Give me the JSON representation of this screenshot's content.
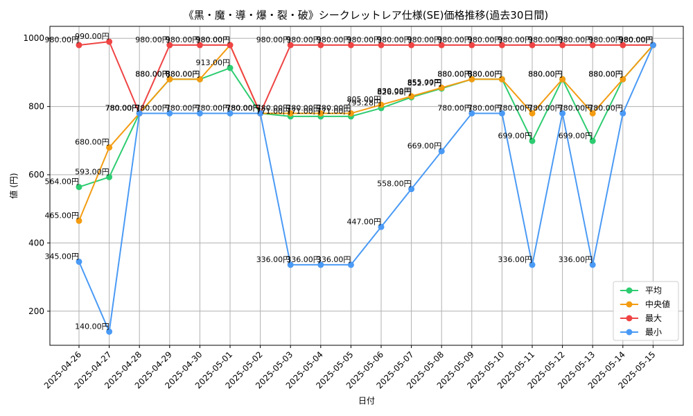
{
  "chart_data": {
    "type": "line",
    "title": "《黒・魔・導・爆・裂・破》シークレットレア仕様(SE)価格推移(過去30日間)",
    "xlabel": "日付",
    "ylabel": "値 (円)",
    "ylim": [
      100,
      1035
    ],
    "yticks": [
      200,
      400,
      600,
      800,
      1000
    ],
    "grid": true,
    "legend_position": "lower-right",
    "value_suffix": "円",
    "categories": [
      "2025-04-26",
      "2025-04-27",
      "2025-04-28",
      "2025-04-29",
      "2025-04-30",
      "2025-05-01",
      "2025-05-02",
      "2025-05-03",
      "2025-05-04",
      "2025-05-05",
      "2025-05-06",
      "2025-05-07",
      "2025-05-08",
      "2025-05-09",
      "2025-05-10",
      "2025-05-11",
      "2025-05-12",
      "2025-05-13",
      "2025-05-14",
      "2025-05-15"
    ],
    "series": [
      {
        "key": "avg",
        "name": "平均",
        "color": "#2ecc71",
        "values": [
          564,
          593,
          780,
          880,
          880,
          913,
          780,
          771,
          771,
          771,
          795.28,
          826.98,
          852.77,
          880,
          880,
          699,
          880,
          699,
          880,
          980
        ]
      },
      {
        "key": "median",
        "name": "中央値",
        "color": "#f39c12",
        "values": [
          465,
          680,
          780,
          880,
          880,
          980,
          780,
          780,
          780,
          780,
          805,
          830,
          855,
          880,
          880,
          780,
          880,
          780,
          880,
          980
        ]
      },
      {
        "key": "max",
        "name": "最大",
        "color": "#ef4444",
        "values": [
          980,
          990,
          780,
          980,
          980,
          980,
          780,
          980,
          980,
          980,
          980,
          980,
          980,
          980,
          980,
          980,
          980,
          980,
          980,
          980
        ]
      },
      {
        "key": "min",
        "name": "最小",
        "color": "#4a9af5",
        "values": [
          345,
          140,
          780,
          780,
          780,
          780,
          780,
          336,
          336,
          336,
          447,
          558,
          669,
          780,
          780,
          336,
          780,
          336,
          780,
          980
        ]
      }
    ]
  }
}
